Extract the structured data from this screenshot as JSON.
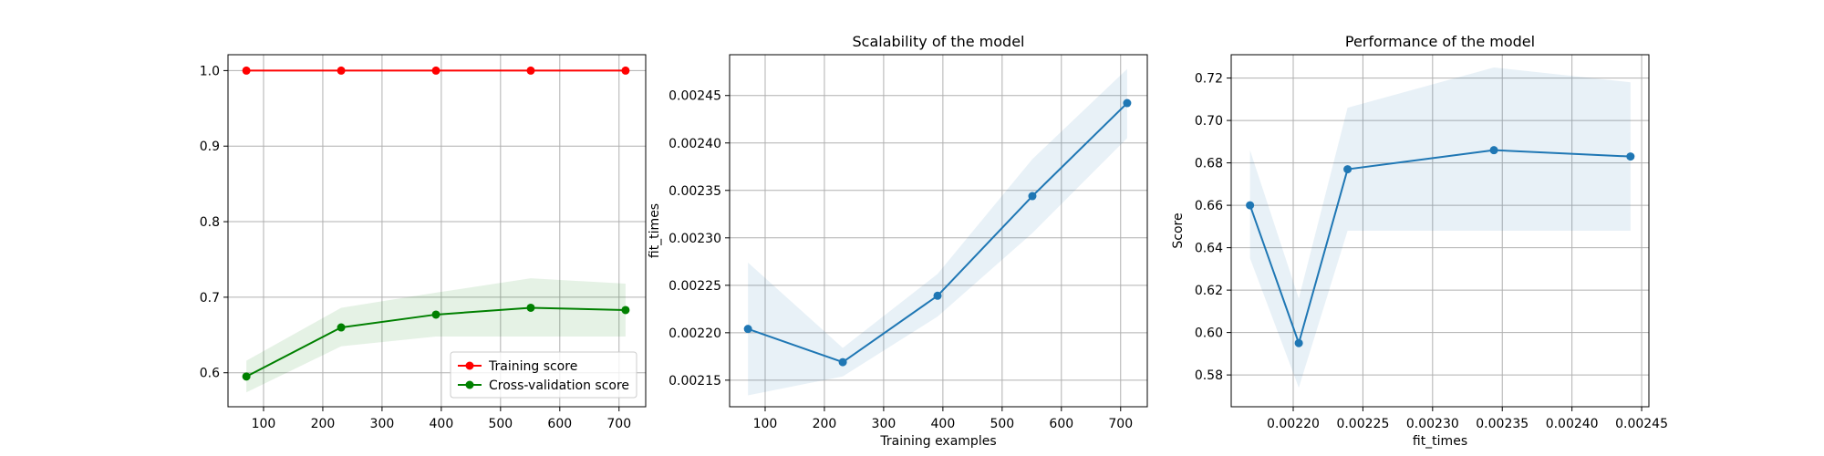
{
  "chart_data": [
    {
      "type": "line",
      "title": "",
      "xlabel": "",
      "ylabel": "",
      "xlim": [
        40,
        745
      ],
      "ylim": [
        0.555,
        1.021
      ],
      "xticks": [
        100,
        200,
        300,
        400,
        500,
        600,
        700
      ],
      "yticks": [
        0.6,
        0.7,
        0.8,
        0.9,
        1.0
      ],
      "grid": true,
      "legend_position": "lower-right",
      "series": [
        {
          "name": "Training score",
          "color": "#ff0000",
          "x": [
            71,
            231,
            391,
            551,
            711
          ],
          "y": [
            1.0,
            1.0,
            1.0,
            1.0,
            1.0
          ],
          "band_low": [
            1.0,
            1.0,
            1.0,
            1.0,
            1.0
          ],
          "band_high": [
            1.0,
            1.0,
            1.0,
            1.0,
            1.0
          ],
          "band_color": "#ff0000"
        },
        {
          "name": "Cross-validation score",
          "color": "#008000",
          "x": [
            71,
            231,
            391,
            551,
            711
          ],
          "y": [
            0.595,
            0.66,
            0.677,
            0.686,
            0.683
          ],
          "band_low": [
            0.574,
            0.635,
            0.648,
            0.648,
            0.648
          ],
          "band_high": [
            0.616,
            0.686,
            0.706,
            0.725,
            0.718
          ],
          "band_color": "#008000"
        }
      ]
    },
    {
      "type": "line",
      "title": "Scalability of the model",
      "xlabel": "Training examples",
      "ylabel": "fit_times",
      "xlim": [
        40,
        745
      ],
      "ylim": [
        0.002122,
        0.002493
      ],
      "xticks": [
        100,
        200,
        300,
        400,
        500,
        600,
        700
      ],
      "yticks": [
        0.00215,
        0.0022,
        0.00225,
        0.0023,
        0.00235,
        0.0024,
        0.00245
      ],
      "grid": true,
      "series": [
        {
          "name": "",
          "color": "#1f77b4",
          "x": [
            71,
            231,
            391,
            551,
            711
          ],
          "y": [
            0.002204,
            0.002169,
            0.002239,
            0.002344,
            0.002442
          ],
          "band_low": [
            0.002134,
            0.002154,
            0.002217,
            0.002305,
            0.002405
          ],
          "band_high": [
            0.002274,
            0.002184,
            0.002262,
            0.002383,
            0.002478
          ],
          "band_color": "#1f77b4"
        }
      ]
    },
    {
      "type": "line",
      "title": "Performance of the model",
      "xlabel": "fit_times",
      "ylabel": "Score",
      "xlim": [
        0.0021555,
        0.0024552
      ],
      "ylim": [
        0.565,
        0.731
      ],
      "xticks": [
        0.0022,
        0.00225,
        0.0023,
        0.00235,
        0.0024,
        0.00245
      ],
      "yticks": [
        0.58,
        0.6,
        0.62,
        0.64,
        0.66,
        0.68,
        0.7,
        0.72
      ],
      "grid": true,
      "series": [
        {
          "name": "",
          "color": "#1f77b4",
          "x": [
            0.002169,
            0.002204,
            0.002239,
            0.002344,
            0.002442
          ],
          "y": [
            0.66,
            0.595,
            0.677,
            0.686,
            0.683
          ],
          "band_low": [
            0.635,
            0.574,
            0.648,
            0.648,
            0.648
          ],
          "band_high": [
            0.686,
            0.616,
            0.706,
            0.725,
            0.718
          ],
          "band_color": "#1f77b4"
        }
      ]
    }
  ]
}
